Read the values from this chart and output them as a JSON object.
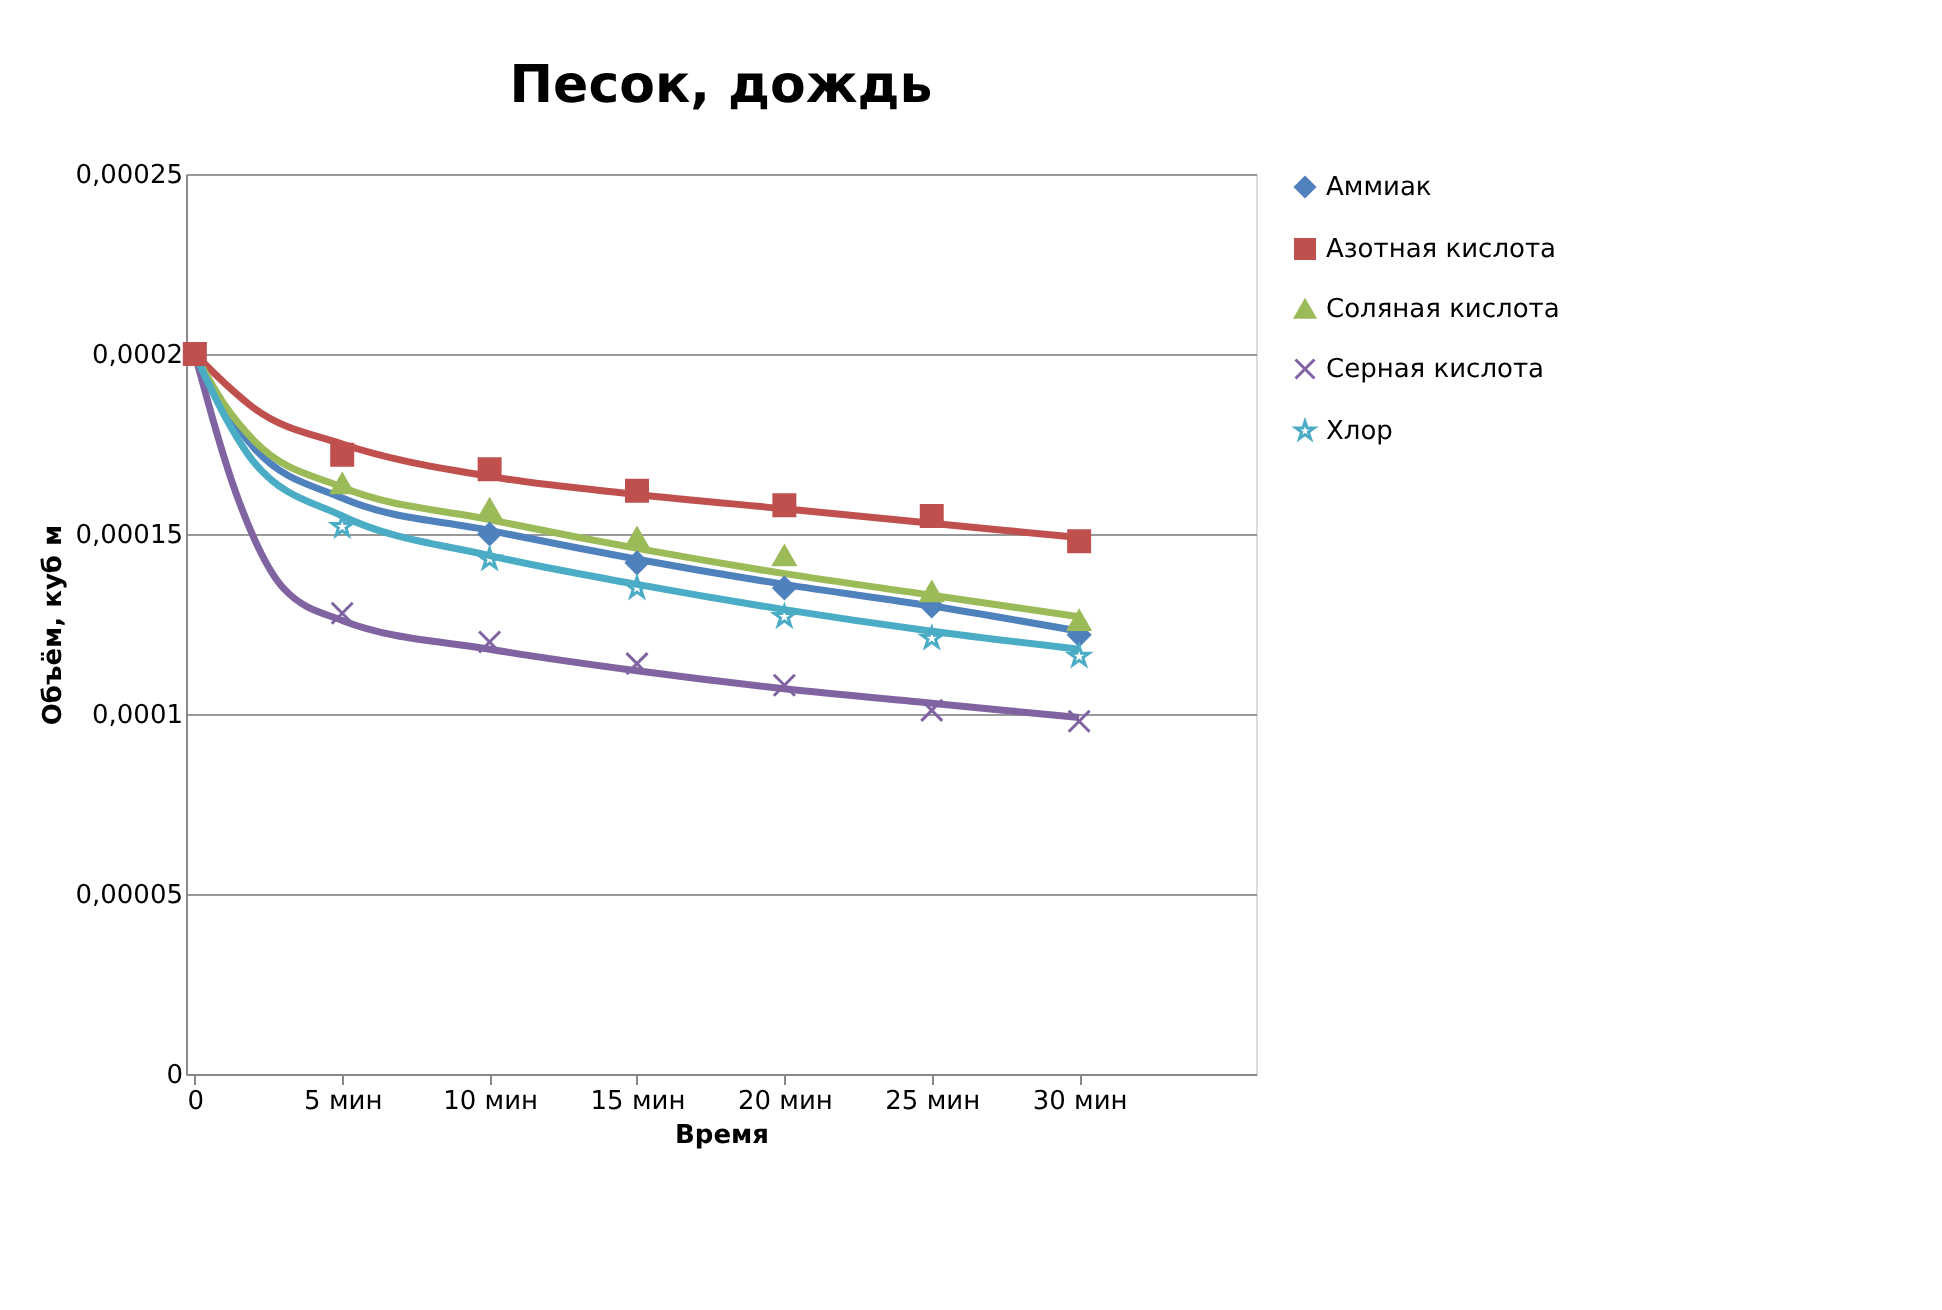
{
  "chart_data": {
    "type": "scatter",
    "title": "Песок, дождь",
    "xlabel": "Время",
    "ylabel": "Объём, куб м",
    "xlim": [
      -0.3,
      36
    ],
    "xticks": [
      {
        "value": 0,
        "label": "0"
      },
      {
        "value": 5,
        "label": "5 мин"
      },
      {
        "value": 10,
        "label": "10 мин"
      },
      {
        "value": 15,
        "label": "15 мин"
      },
      {
        "value": 20,
        "label": "20 мин"
      },
      {
        "value": 25,
        "label": "25 мин"
      },
      {
        "value": 30,
        "label": "30 мин"
      }
    ],
    "ylim": [
      0,
      0.00025
    ],
    "yticks": [
      {
        "value": 0,
        "label": "0"
      },
      {
        "value": 5e-05,
        "label": "0,00005"
      },
      {
        "value": 0.0001,
        "label": "0,0001"
      },
      {
        "value": 0.00015,
        "label": "0,00015"
      },
      {
        "value": 0.0002,
        "label": "0,0002"
      },
      {
        "value": 0.00025,
        "label": "0,00025"
      }
    ],
    "grid": "y",
    "legend": "right",
    "x": [
      0,
      5,
      10,
      15,
      20,
      25,
      30
    ],
    "series": [
      {
        "name": "Аммиак",
        "color": "#4f81bd",
        "marker": "diamond",
        "values": [
          null,
          null,
          0.00015,
          0.000142,
          0.000135,
          0.00013,
          0.000122
        ]
      },
      {
        "name": "Азотная кислота",
        "color": "#c0504d",
        "marker": "square",
        "values": [
          0.0002,
          0.000172,
          0.000168,
          0.000162,
          0.000158,
          0.000155,
          0.000148
        ]
      },
      {
        "name": "Соляная кислота",
        "color": "#9bbb59",
        "marker": "triangle",
        "values": [
          null,
          0.000164,
          0.000157,
          0.000149,
          0.000144,
          0.000134,
          0.000126
        ]
      },
      {
        "name": "Серная кислота",
        "color": "#8064a2",
        "marker": "cross",
        "values": [
          null,
          0.000128,
          0.00012,
          0.000114,
          0.000108,
          0.000101,
          9.8e-05
        ]
      },
      {
        "name": "Хлор",
        "color": "#4bacc6",
        "marker": "star",
        "values": [
          null,
          0.000152,
          0.000143,
          0.000135,
          0.000127,
          0.000121,
          0.000116
        ]
      },
      {
        "type": "line",
        "color": "#4f81bd",
        "x": [
          0,
          1,
          2,
          5,
          10,
          15,
          20,
          25,
          30
        ],
        "values": [
          0.0002,
          0.000185,
          0.000174,
          0.00016,
          0.000151,
          0.000143,
          0.000136,
          0.00013,
          0.000123
        ]
      },
      {
        "type": "line",
        "color": "#c0504d",
        "x": [
          0,
          1,
          2,
          5,
          10,
          15,
          20,
          25,
          30
        ],
        "values": [
          0.0002,
          0.000192,
          0.000185,
          0.000175,
          0.000166,
          0.000161,
          0.000157,
          0.000153,
          0.000149
        ]
      },
      {
        "type": "line",
        "color": "#9bbb59",
        "x": [
          0,
          1,
          2,
          5,
          10,
          15,
          20,
          25,
          30
        ],
        "values": [
          0.0002,
          0.000186,
          0.000176,
          0.000163,
          0.000154,
          0.000146,
          0.000139,
          0.000133,
          0.000127
        ]
      },
      {
        "type": "line",
        "color": "#8064a2",
        "x": [
          0,
          1.5,
          3,
          5,
          10,
          15,
          20,
          25,
          30
        ],
        "values": [
          0.0002,
          0.000159,
          0.000135,
          0.000126,
          0.000118,
          0.000112,
          0.000107,
          0.000103,
          9.9e-05
        ]
      },
      {
        "type": "line",
        "color": "#4bacc6",
        "x": [
          0,
          1,
          2,
          5,
          10,
          15,
          20,
          25,
          30
        ],
        "values": [
          0.0002,
          0.000183,
          0.00017,
          0.000155,
          0.000144,
          0.000136,
          0.000129,
          0.000123,
          0.000118
        ]
      }
    ]
  }
}
